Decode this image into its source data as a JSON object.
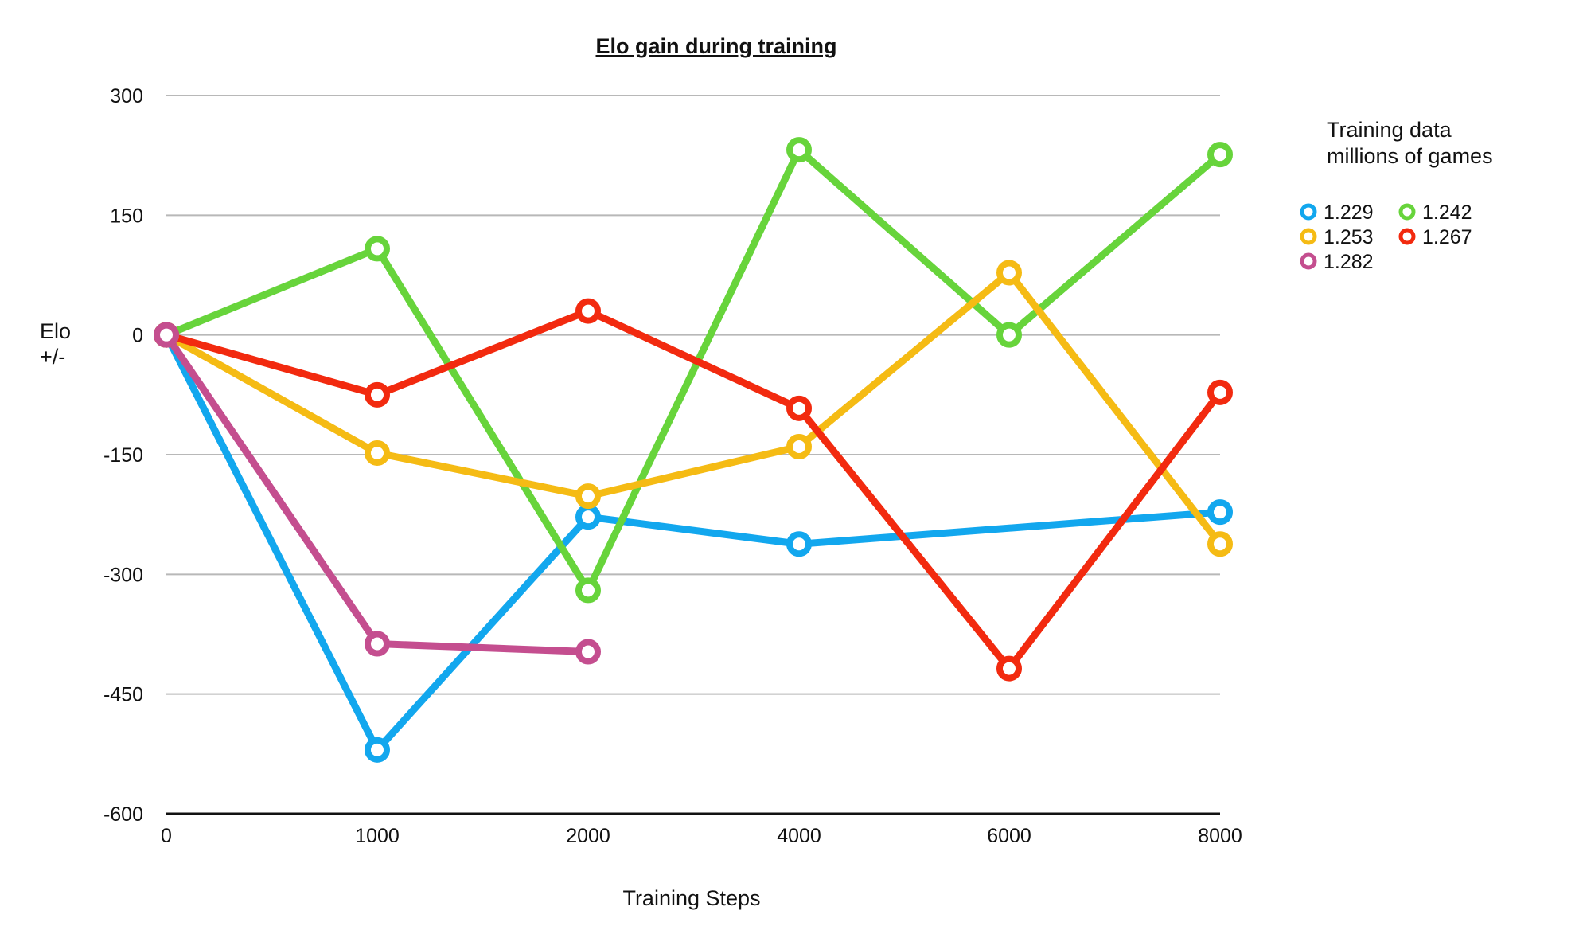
{
  "chart_data": {
    "type": "line",
    "title": "Elo gain during training",
    "xlabel": "Training Steps",
    "ylabel": [
      "Elo",
      "+/-"
    ],
    "x_categories": [
      "0",
      "1000",
      "2000",
      "4000",
      "6000",
      "8000"
    ],
    "y_ticks": [
      300,
      150,
      0,
      -150,
      -300,
      -450,
      -600
    ],
    "ylim": [
      -600,
      300
    ],
    "grid": true,
    "legend": {
      "title": [
        "Training data",
        "millions of games"
      ],
      "position": "right"
    },
    "series": [
      {
        "name": "1.229",
        "color": "#12a7ee",
        "values": [
          0,
          -520,
          -228,
          -262,
          null,
          -222
        ]
      },
      {
        "name": "1.242",
        "color": "#67d43b",
        "values": [
          0,
          108,
          -320,
          232,
          0,
          226
        ]
      },
      {
        "name": "1.253",
        "color": "#f5bb14",
        "values": [
          0,
          -148,
          -202,
          -140,
          78,
          -262
        ]
      },
      {
        "name": "1.267",
        "color": "#f22a0f",
        "values": [
          0,
          -75,
          30,
          -92,
          -418,
          -72
        ]
      },
      {
        "name": "1.282",
        "color": "#c44e8f",
        "values": [
          0,
          -387,
          -397,
          null,
          null,
          null
        ]
      }
    ]
  }
}
